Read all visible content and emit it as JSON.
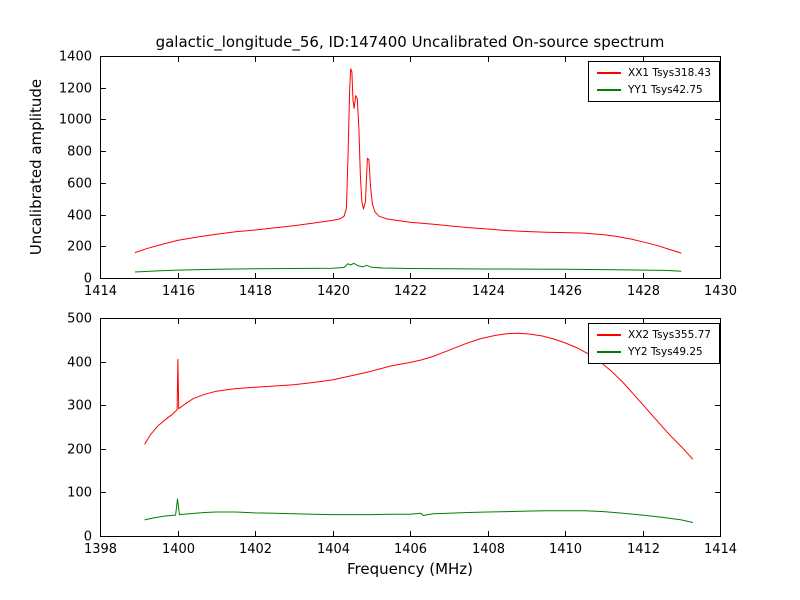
{
  "title": "galactic_longitude_56, ID:147400 Uncalibrated On-source spectrum",
  "xlabel": "Frequency (MHz)",
  "ylabel": "Uncalibrated amplitude",
  "chart_data": [
    {
      "type": "line",
      "xlim": [
        1414,
        1430
      ],
      "ylim": [
        0,
        1400
      ],
      "xticks": [
        1414,
        1416,
        1418,
        1420,
        1422,
        1424,
        1426,
        1428,
        1430
      ],
      "yticks": [
        0,
        200,
        400,
        600,
        800,
        1000,
        1200,
        1400
      ],
      "grid": false,
      "legend_position": "upper right",
      "series": [
        {
          "name": "XX1 Tsys318.43",
          "color": "#ff0000",
          "points": [
            [
              1414.9,
              160
            ],
            [
              1415.2,
              185
            ],
            [
              1415.6,
              212
            ],
            [
              1416.0,
              237
            ],
            [
              1416.5,
              258
            ],
            [
              1417.0,
              276
            ],
            [
              1417.5,
              292
            ],
            [
              1418.0,
              303
            ],
            [
              1418.5,
              316
            ],
            [
              1419.0,
              330
            ],
            [
              1419.5,
              346
            ],
            [
              1420.0,
              363
            ],
            [
              1420.2,
              374
            ],
            [
              1420.3,
              390
            ],
            [
              1420.36,
              440
            ],
            [
              1420.4,
              760
            ],
            [
              1420.44,
              1180
            ],
            [
              1420.47,
              1320
            ],
            [
              1420.5,
              1300
            ],
            [
              1420.53,
              1120
            ],
            [
              1420.56,
              1070
            ],
            [
              1420.6,
              1150
            ],
            [
              1420.64,
              1130
            ],
            [
              1420.68,
              940
            ],
            [
              1420.72,
              640
            ],
            [
              1420.76,
              480
            ],
            [
              1420.8,
              435
            ],
            [
              1420.85,
              480
            ],
            [
              1420.9,
              755
            ],
            [
              1420.94,
              745
            ],
            [
              1420.98,
              580
            ],
            [
              1421.03,
              465
            ],
            [
              1421.1,
              415
            ],
            [
              1421.2,
              390
            ],
            [
              1421.4,
              373
            ],
            [
              1421.7,
              362
            ],
            [
              1422.0,
              352
            ],
            [
              1422.5,
              341
            ],
            [
              1423.0,
              329
            ],
            [
              1423.5,
              318
            ],
            [
              1424.0,
              309
            ],
            [
              1424.5,
              299
            ],
            [
              1425.0,
              293
            ],
            [
              1425.5,
              289
            ],
            [
              1426.0,
              286
            ],
            [
              1426.5,
              283
            ],
            [
              1427.0,
              273
            ],
            [
              1427.3,
              263
            ],
            [
              1427.7,
              246
            ],
            [
              1428.0,
              228
            ],
            [
              1428.4,
              204
            ],
            [
              1428.7,
              180
            ],
            [
              1429.0,
              157
            ]
          ]
        },
        {
          "name": "YY1 Tsys42.75",
          "color": "#008000",
          "points": [
            [
              1414.9,
              38
            ],
            [
              1415.5,
              45
            ],
            [
              1416.0,
              50
            ],
            [
              1417.0,
              55
            ],
            [
              1418.0,
              58
            ],
            [
              1419.0,
              60
            ],
            [
              1420.0,
              62
            ],
            [
              1420.3,
              66
            ],
            [
              1420.4,
              90
            ],
            [
              1420.47,
              82
            ],
            [
              1420.55,
              93
            ],
            [
              1420.65,
              78
            ],
            [
              1420.78,
              70
            ],
            [
              1420.88,
              80
            ],
            [
              1421.0,
              68
            ],
            [
              1421.3,
              63
            ],
            [
              1422.0,
              60
            ],
            [
              1423.0,
              58
            ],
            [
              1424.0,
              57
            ],
            [
              1425.0,
              56
            ],
            [
              1426.0,
              55
            ],
            [
              1427.0,
              53
            ],
            [
              1428.0,
              50
            ],
            [
              1428.6,
              48
            ],
            [
              1429.0,
              42
            ]
          ]
        }
      ]
    },
    {
      "type": "line",
      "xlim": [
        1398,
        1414
      ],
      "ylim": [
        0,
        500
      ],
      "xticks": [
        1398,
        1400,
        1402,
        1404,
        1406,
        1408,
        1410,
        1412,
        1414
      ],
      "yticks": [
        0,
        100,
        200,
        300,
        400,
        500
      ],
      "grid": false,
      "legend_position": "upper right",
      "series": [
        {
          "name": "XX2 Tsys355.77",
          "color": "#ff0000",
          "points": [
            [
              1399.15,
              210
            ],
            [
              1399.3,
              232
            ],
            [
              1399.5,
              253
            ],
            [
              1399.7,
              268
            ],
            [
              1399.85,
              278
            ],
            [
              1399.95,
              286
            ],
            [
              1399.99,
              290
            ],
            [
              1400.01,
              405
            ],
            [
              1400.03,
              292
            ],
            [
              1400.2,
              303
            ],
            [
              1400.4,
              315
            ],
            [
              1400.7,
              325
            ],
            [
              1401.0,
              332
            ],
            [
              1401.5,
              338
            ],
            [
              1402.0,
              341
            ],
            [
              1402.5,
              344
            ],
            [
              1403.0,
              347
            ],
            [
              1403.5,
              352
            ],
            [
              1404.0,
              358
            ],
            [
              1404.5,
              368
            ],
            [
              1405.0,
              378
            ],
            [
              1405.5,
              390
            ],
            [
              1406.0,
              398
            ],
            [
              1406.3,
              404
            ],
            [
              1406.6,
              412
            ],
            [
              1407.0,
              426
            ],
            [
              1407.4,
              440
            ],
            [
              1407.8,
              452
            ],
            [
              1408.2,
              460
            ],
            [
              1408.5,
              464
            ],
            [
              1408.8,
              465
            ],
            [
              1409.1,
              463
            ],
            [
              1409.4,
              459
            ],
            [
              1409.7,
              452
            ],
            [
              1410.0,
              443
            ],
            [
              1410.3,
              432
            ],
            [
              1410.6,
              418
            ],
            [
              1410.9,
              400
            ],
            [
              1411.2,
              378
            ],
            [
              1411.5,
              352
            ],
            [
              1411.8,
              322
            ],
            [
              1412.1,
              292
            ],
            [
              1412.4,
              262
            ],
            [
              1412.7,
              232
            ],
            [
              1413.0,
              205
            ],
            [
              1413.3,
              176
            ]
          ]
        },
        {
          "name": "YY2 Tsys49.25",
          "color": "#008000",
          "points": [
            [
              1399.15,
              37
            ],
            [
              1399.4,
              42
            ],
            [
              1399.7,
              46
            ],
            [
              1399.95,
              48
            ],
            [
              1400.0,
              85
            ],
            [
              1400.05,
              49
            ],
            [
              1400.3,
              51
            ],
            [
              1400.7,
              54
            ],
            [
              1401.0,
              55
            ],
            [
              1401.5,
              55
            ],
            [
              1402.0,
              53
            ],
            [
              1402.5,
              52
            ],
            [
              1403.0,
              51
            ],
            [
              1403.5,
              50
            ],
            [
              1404.0,
              49
            ],
            [
              1404.5,
              49
            ],
            [
              1405.0,
              49
            ],
            [
              1405.5,
              50
            ],
            [
              1406.0,
              50
            ],
            [
              1406.28,
              52
            ],
            [
              1406.34,
              47
            ],
            [
              1406.6,
              51
            ],
            [
              1407.0,
              52
            ],
            [
              1407.5,
              54
            ],
            [
              1408.0,
              55
            ],
            [
              1408.5,
              56
            ],
            [
              1409.0,
              57
            ],
            [
              1409.5,
              58
            ],
            [
              1410.0,
              58
            ],
            [
              1410.5,
              58
            ],
            [
              1411.0,
              56
            ],
            [
              1411.5,
              52
            ],
            [
              1412.0,
              48
            ],
            [
              1412.5,
              43
            ],
            [
              1413.0,
              37
            ],
            [
              1413.3,
              31
            ]
          ]
        }
      ]
    }
  ]
}
